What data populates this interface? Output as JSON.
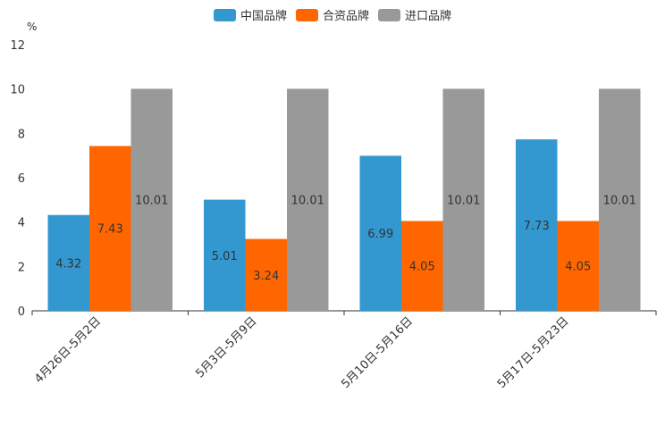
{
  "chart_data": {
    "type": "bar",
    "title": "",
    "xlabel": "",
    "ylabel": "%",
    "ylim": [
      0,
      12
    ],
    "yticks": [
      0,
      2,
      4,
      6,
      8,
      10,
      12
    ],
    "categories": [
      "4月26日-5月2日",
      "5月3日-5月9日",
      "5月10日-5月16日",
      "5月17日-5月23日"
    ],
    "series": [
      {
        "name": "中国品牌",
        "color": "#3498d0",
        "values": [
          4.32,
          5.01,
          6.99,
          7.73
        ]
      },
      {
        "name": "合资品牌",
        "color": "#ff6600",
        "values": [
          7.43,
          3.24,
          4.05,
          4.05
        ]
      },
      {
        "name": "进口品牌",
        "color": "#999999",
        "values": [
          10.01,
          10.01,
          10.01,
          10.01
        ]
      }
    ],
    "legend_position": "top-center",
    "grid": false
  }
}
